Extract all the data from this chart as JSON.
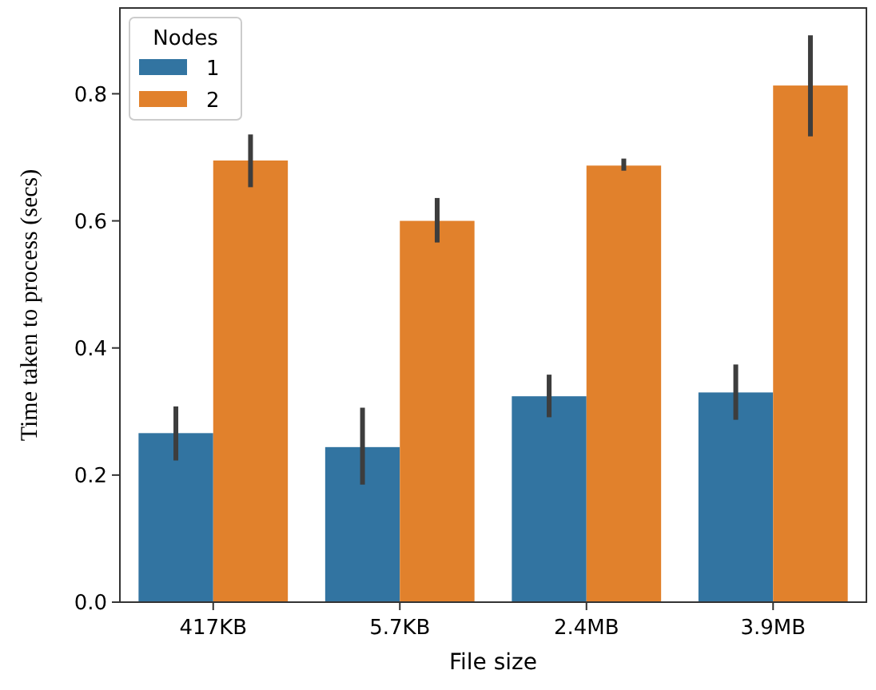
{
  "chart_data": {
    "type": "bar",
    "xlabel": "File size",
    "ylabel": "Time taken to process (secs)",
    "legend_title": "Nodes",
    "legend": "top left",
    "categories": [
      "417KB",
      "5.7KB",
      "2.4MB",
      "3.9MB"
    ],
    "series": [
      {
        "name": "1",
        "color": "#3274a1",
        "values": [
          0.266,
          0.244,
          0.324,
          0.33
        ],
        "errors": [
          [
            0.223,
            0.308
          ],
          [
            0.185,
            0.306
          ],
          [
            0.291,
            0.358
          ],
          [
            0.287,
            0.374
          ]
        ]
      },
      {
        "name": "2",
        "color": "#e1812c",
        "values": [
          0.695,
          0.6,
          0.687,
          0.813
        ],
        "errors": [
          [
            0.653,
            0.736
          ],
          [
            0.566,
            0.636
          ],
          [
            0.679,
            0.698
          ],
          [
            0.733,
            0.892
          ]
        ]
      }
    ],
    "ylim": [
      0,
      0.935
    ],
    "yticks": [
      {
        "value": 0,
        "label": "0.0"
      },
      {
        "value": 0.2,
        "label": "0.2"
      },
      {
        "value": 0.4,
        "label": "0.4"
      },
      {
        "value": 0.6,
        "label": "0.6"
      },
      {
        "value": 0.8,
        "label": "0.8"
      }
    ]
  }
}
